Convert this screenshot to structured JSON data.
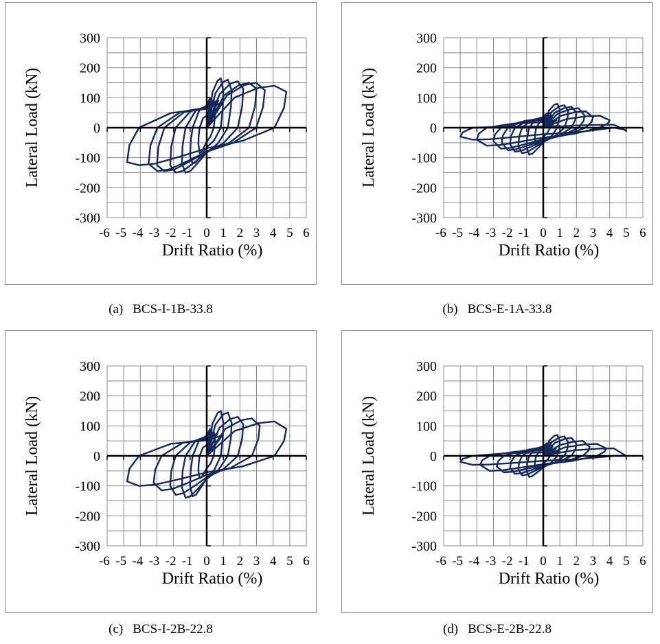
{
  "style": {
    "series_color": "#14285a",
    "axis_color": "#000000",
    "grid_color": "#8c8c8c"
  },
  "panels": [
    {
      "label": "(a)",
      "caption": "BCS-I-1B-33.8"
    },
    {
      "label": "(b)",
      "caption": "BCS-E-1A-33.8"
    },
    {
      "label": "(c)",
      "caption": "BCS-I-2B-22.8"
    },
    {
      "label": "(d)",
      "caption": "BCS-E-2B-22.8"
    }
  ],
  "chart_data": [
    {
      "type": "line",
      "xlabel": "Drift Ratio (%)",
      "ylabel": "Lateral Load (kN)",
      "xlim": [
        -6,
        6
      ],
      "ylim": [
        -300,
        300
      ],
      "x_ticks": [
        -6,
        -5,
        -4,
        -3,
        -2,
        -1,
        0,
        1,
        2,
        3,
        4,
        5,
        6
      ],
      "y_ticks": [
        300,
        200,
        100,
        0,
        -100,
        -200,
        -300
      ],
      "grid": true,
      "loops": [
        {
          "d": 0.5,
          "pos": 90,
          "neg": -85,
          "pos_end": 60,
          "neg_end": -55
        },
        {
          "d": 1.0,
          "pos": 165,
          "neg": -120,
          "pos_end": 120,
          "neg_end": -95
        },
        {
          "d": 1.5,
          "pos": 160,
          "neg": -150,
          "pos_end": 125,
          "neg_end": -120
        },
        {
          "d": 2.2,
          "pos": 155,
          "neg": -150,
          "pos_end": 130,
          "neg_end": -125
        },
        {
          "d": 3.0,
          "pos": 150,
          "neg": -145,
          "pos_end": 130,
          "neg_end": -125
        },
        {
          "d": 3.5,
          "pos": 150,
          "neg": -145,
          "pos_end": 125,
          "neg_end": -120
        },
        {
          "d": 4.8,
          "pos": 140,
          "neg": -125,
          "pos_end": 120,
          "neg_end": -115
        }
      ]
    },
    {
      "type": "line",
      "xlabel": "Drift Ratio (%)",
      "ylabel": "Lateral Load (kN)",
      "xlim": [
        -6,
        6
      ],
      "ylim": [
        -300,
        300
      ],
      "x_ticks": [
        -6,
        -5,
        -4,
        -3,
        -2,
        -1,
        0,
        1,
        2,
        3,
        4,
        5,
        6
      ],
      "y_ticks": [
        300,
        200,
        100,
        0,
        -100,
        -200,
        -300
      ],
      "grid": true,
      "loops": [
        {
          "d": 0.5,
          "pos": 50,
          "neg": -55,
          "pos_end": 35,
          "neg_end": -40
        },
        {
          "d": 1.0,
          "pos": 80,
          "neg": -90,
          "pos_end": 60,
          "neg_end": -65
        },
        {
          "d": 1.5,
          "pos": 75,
          "neg": -85,
          "pos_end": 55,
          "neg_end": -60
        },
        {
          "d": 2.0,
          "pos": 70,
          "neg": -80,
          "pos_end": 50,
          "neg_end": -55
        },
        {
          "d": 2.5,
          "pos": 65,
          "neg": -75,
          "pos_end": 40,
          "neg_end": -50
        },
        {
          "d": 3.0,
          "pos": 55,
          "neg": -70,
          "pos_end": 35,
          "neg_end": -45
        },
        {
          "d": 4.0,
          "pos": 40,
          "neg": -60,
          "pos_end": 25,
          "neg_end": -40
        },
        {
          "d": 5.0,
          "pos": 10,
          "neg": -40,
          "pos_end": -10,
          "neg_end": -30
        }
      ]
    },
    {
      "type": "line",
      "xlabel": "Drift Ratio (%)",
      "ylabel": "Lateral Load (kN)",
      "xlim": [
        -6,
        6
      ],
      "ylim": [
        -300,
        300
      ],
      "x_ticks": [
        -6,
        -5,
        -4,
        -3,
        -2,
        -1,
        0,
        1,
        2,
        3,
        4,
        5,
        6
      ],
      "y_ticks": [
        300,
        200,
        100,
        0,
        -100,
        -200,
        -300
      ],
      "grid": true,
      "loops": [
        {
          "d": 0.5,
          "pos": 80,
          "neg": -75,
          "pos_end": 55,
          "neg_end": -50
        },
        {
          "d": 1.0,
          "pos": 150,
          "neg": -135,
          "pos_end": 110,
          "neg_end": -100
        },
        {
          "d": 1.5,
          "pos": 145,
          "neg": -140,
          "pos_end": 110,
          "neg_end": -105
        },
        {
          "d": 2.2,
          "pos": 130,
          "neg": -130,
          "pos_end": 105,
          "neg_end": -100
        },
        {
          "d": 3.2,
          "pos": 125,
          "neg": -115,
          "pos_end": 100,
          "neg_end": -90
        },
        {
          "d": 4.8,
          "pos": 115,
          "neg": -100,
          "pos_end": 90,
          "neg_end": -85
        }
      ]
    },
    {
      "type": "line",
      "xlabel": "Drift Ratio (%)",
      "ylabel": "Lateral Load (kN)",
      "xlim": [
        -6,
        6
      ],
      "ylim": [
        -300,
        300
      ],
      "x_ticks": [
        -6,
        -5,
        -4,
        -3,
        -2,
        -1,
        0,
        1,
        2,
        3,
        4,
        5,
        6
      ],
      "y_ticks": [
        300,
        200,
        100,
        0,
        -100,
        -200,
        -300
      ],
      "grid": true,
      "loops": [
        {
          "d": 0.5,
          "pos": 45,
          "neg": -45,
          "pos_end": 30,
          "neg_end": -30
        },
        {
          "d": 1.0,
          "pos": 70,
          "neg": -70,
          "pos_end": 50,
          "neg_end": -50
        },
        {
          "d": 1.5,
          "pos": 65,
          "neg": -65,
          "pos_end": 45,
          "neg_end": -45
        },
        {
          "d": 2.0,
          "pos": 60,
          "neg": -60,
          "pos_end": 40,
          "neg_end": -40
        },
        {
          "d": 2.8,
          "pos": 50,
          "neg": -55,
          "pos_end": 30,
          "neg_end": -35
        },
        {
          "d": 3.8,
          "pos": 40,
          "neg": -50,
          "pos_end": 25,
          "neg_end": -30
        },
        {
          "d": 5.0,
          "pos": 25,
          "neg": -30,
          "pos_end": 0,
          "neg_end": -20
        }
      ]
    }
  ]
}
